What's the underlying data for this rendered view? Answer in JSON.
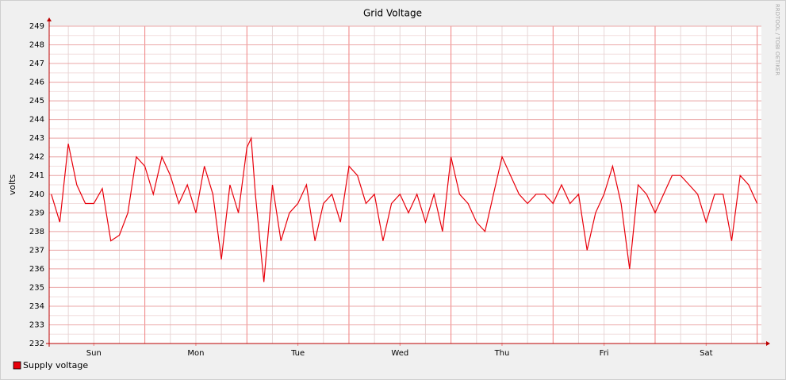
{
  "chart_data": {
    "type": "line",
    "title": "Grid Voltage",
    "y_label": "volts",
    "watermark": "RRDTOOL / TOBI OETIKER",
    "x": [
      2,
      4,
      6,
      8,
      10,
      12,
      14,
      16,
      18,
      20,
      22,
      24,
      26,
      28,
      30,
      32,
      34,
      36,
      38,
      40,
      42,
      44,
      46,
      48,
      49,
      50,
      52,
      54,
      56,
      58,
      60,
      62,
      64,
      66,
      68,
      70,
      72,
      74,
      76,
      78,
      80,
      82,
      84,
      86,
      88,
      90,
      92,
      94,
      96,
      98,
      100,
      102,
      104,
      106,
      108,
      110,
      112,
      114,
      116,
      118,
      120,
      122,
      124,
      126,
      128,
      130,
      132,
      134,
      136,
      138,
      140,
      142,
      144,
      146,
      148,
      150,
      152,
      154,
      156,
      158,
      160,
      162,
      164,
      166,
      168
    ],
    "series": [
      {
        "name": "Supply voltage",
        "color": "#e8000b",
        "values": [
          240,
          238.5,
          242.7,
          240.5,
          239.5,
          239.5,
          240.3,
          237.5,
          237.8,
          239,
          242,
          241.5,
          240,
          242,
          241,
          239.5,
          240.5,
          239,
          241.5,
          240,
          236.5,
          240.5,
          239,
          242.5,
          243,
          240,
          235.3,
          240.5,
          237.5,
          239,
          239.5,
          240.5,
          237.5,
          239.5,
          240,
          238.5,
          241.5,
          241,
          239.5,
          240,
          237.5,
          239.5,
          240,
          239,
          240,
          238.5,
          240,
          238,
          242,
          240,
          239.5,
          238.5,
          238,
          240,
          242,
          241,
          240,
          239.5,
          240,
          240,
          239.5,
          240.5,
          239.5,
          240,
          237,
          239,
          240,
          241.5,
          239.5,
          236,
          240.5,
          240,
          239,
          240,
          241,
          241,
          240.5,
          240,
          238.5,
          240,
          240,
          237.5,
          241,
          240.5,
          239.5
        ]
      }
    ],
    "xlim": [
      1.5,
      169
    ],
    "xticks": [
      {
        "value": 12,
        "label": "Sun"
      },
      {
        "value": 36,
        "label": "Mon"
      },
      {
        "value": 60,
        "label": "Tue"
      },
      {
        "value": 84,
        "label": "Wed"
      },
      {
        "value": 108,
        "label": "Thu"
      },
      {
        "value": 132,
        "label": "Fri"
      },
      {
        "value": 156,
        "label": "Sat"
      }
    ],
    "ylim": [
      232,
      249
    ],
    "yticks": [
      232,
      233,
      234,
      235,
      236,
      237,
      238,
      239,
      240,
      241,
      242,
      243,
      244,
      245,
      246,
      247,
      248,
      249
    ],
    "x_minor_grid_step": 6,
    "x_major_grid_step": 24,
    "y_minor_grid_step": 0.5,
    "grid": true,
    "legend": "bottom-left"
  }
}
